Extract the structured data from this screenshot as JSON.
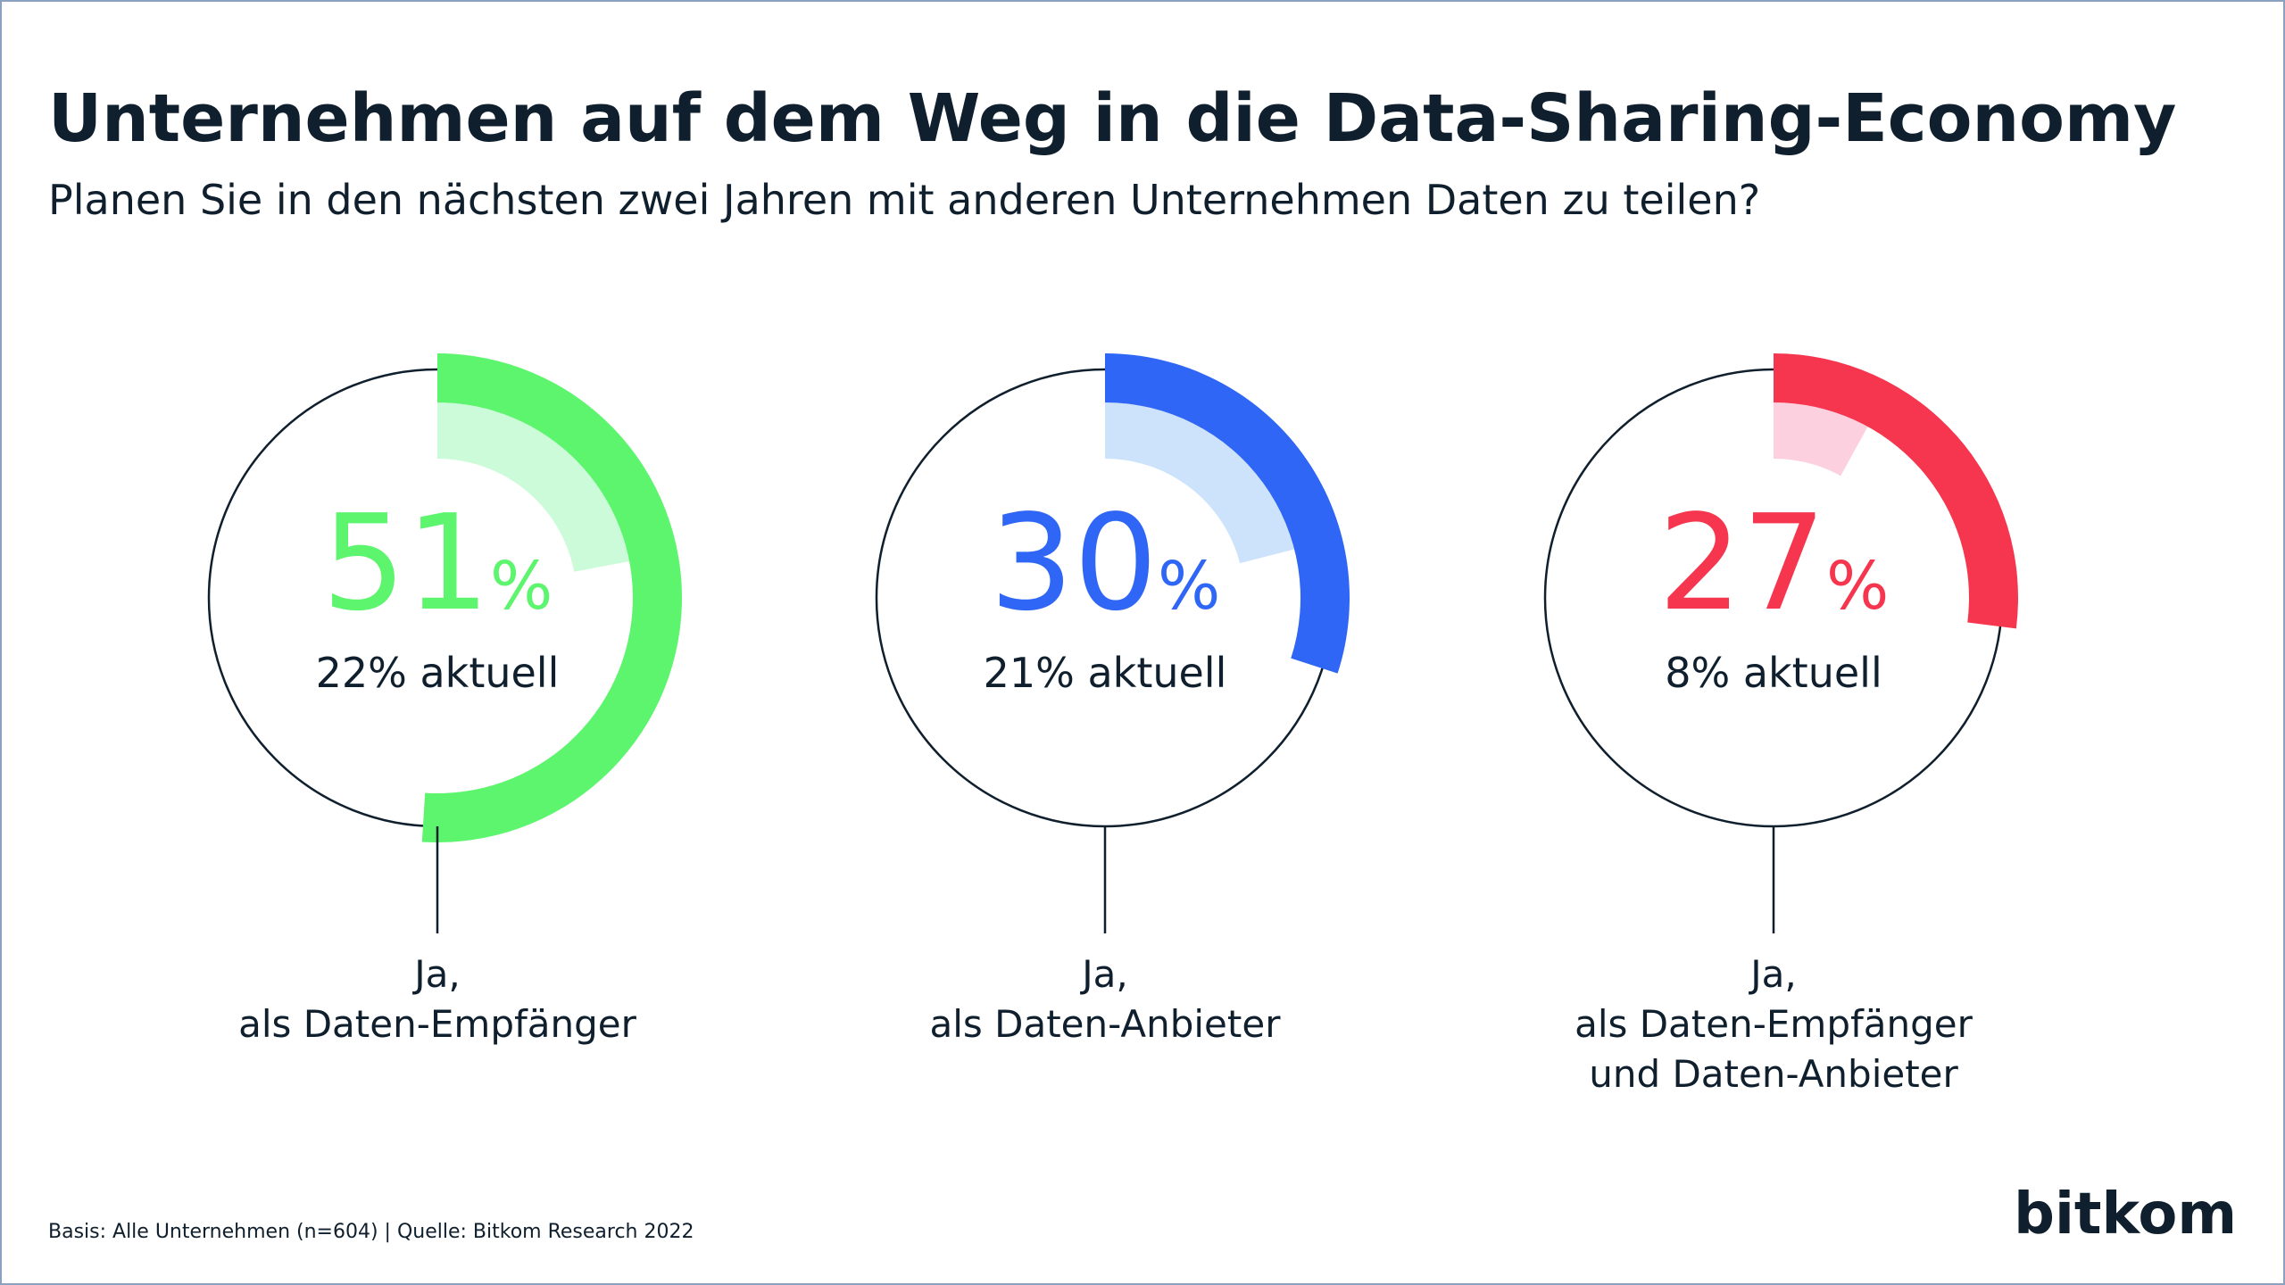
{
  "chart_data": {
    "type": "gauge",
    "title": "Unternehmen auf dem Weg in die Data-Sharing-Economy",
    "subtitle": "Planen Sie in den nächsten zwei Jahren mit anderen Unternehmen Daten zu teilen?",
    "categories": [
      [
        "Ja,",
        "als Daten-Empfänger"
      ],
      [
        "Ja,",
        "als Daten-Anbieter"
      ],
      [
        "Ja,",
        "als Daten-Empfänger",
        "und Daten-Anbieter"
      ]
    ],
    "values": [
      51,
      30,
      27
    ],
    "unit": "%",
    "colors": [
      "#5cf56d",
      "#2f66f5",
      "#f5364e"
    ],
    "current_values": [
      22,
      21,
      8
    ],
    "current_value_labels": [
      "22% aktuell",
      "21% aktuell",
      "8% aktuell"
    ],
    "current_colors": [
      "#cbfbd8",
      "#cde3fb",
      "#fcd0de"
    ],
    "ylim": [
      0,
      100
    ],
    "source": "Basis: Alle Unternehmen (n=604) | Quelle: Bitkom Research 2022",
    "logo": "bitkom"
  }
}
